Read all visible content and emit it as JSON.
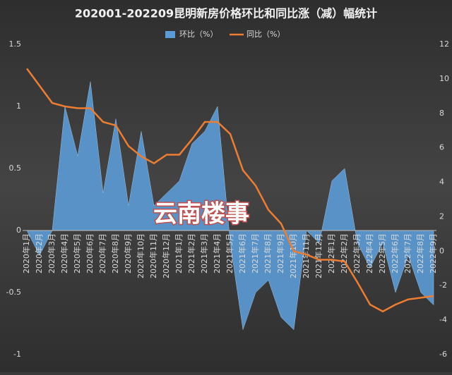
{
  "chart_data": {
    "type": "area-line",
    "title": "202001-202209昆明新房价格环比和同比涨（减）幅统计",
    "categories": [
      "2020年1月",
      "2020年2月",
      "2020年3月",
      "2020年4月",
      "2020年5月",
      "2020年6月",
      "2020年7月",
      "2020年8月",
      "2020年9月",
      "2020年10月",
      "2020年11月",
      "2020年12月",
      "2021年1月",
      "2021年2月",
      "2021年3月",
      "2021年4月",
      "2021年5月",
      "2021年6月",
      "2021年7月",
      "2021年8月",
      "2021年9月",
      "2021年10月",
      "2021年11月",
      "2021年12月",
      "2022年1月",
      "2022年2月",
      "2022年3月",
      "2022年4月",
      "2022年5月",
      "2022年6月",
      "2022年7月",
      "2022年8月",
      "2022年9月"
    ],
    "series": [
      {
        "name": "环比（%）",
        "color": "#5b9bd5",
        "values": [
          0,
          -0.2,
          0,
          1.0,
          0.6,
          1.2,
          0.3,
          0.9,
          0.2,
          0.8,
          0.2,
          0.3,
          0.4,
          0.7,
          0.8,
          1.0,
          -0.1,
          -0.8,
          -0.5,
          -0.4,
          -0.7,
          -0.8,
          0,
          -0.1,
          0.4,
          0.5,
          -0.1,
          -0.3,
          -0.1,
          -0.5,
          -0.2,
          -0.5,
          -0.6
        ]
      },
      {
        "name": "同比（%）",
        "color": "#ed7d31",
        "axis": "y2",
        "values": [
          10.6,
          9.6,
          8.6,
          8.4,
          8.3,
          8.3,
          7.5,
          7.3,
          6.1,
          5.5,
          5.1,
          5.6,
          5.6,
          6.5,
          7.5,
          7.5,
          6.8,
          4.7,
          3.8,
          2.4,
          1.6,
          0.0,
          -0.2,
          -0.5,
          -0.5,
          -0.6,
          -1.8,
          -3.1,
          -3.5,
          -3.1,
          -2.8,
          -2.7,
          -2.6
        ]
      }
    ],
    "ylim": [
      -1,
      1.5
    ],
    "yticks": [
      -1,
      -0.5,
      0,
      0.5,
      1,
      1.5
    ],
    "y2lim": [
      -6,
      12
    ],
    "y2ticks": [
      -6,
      -4,
      -2,
      0,
      2,
      4,
      6,
      8,
      10,
      12
    ],
    "annotation": "云南楼事"
  }
}
